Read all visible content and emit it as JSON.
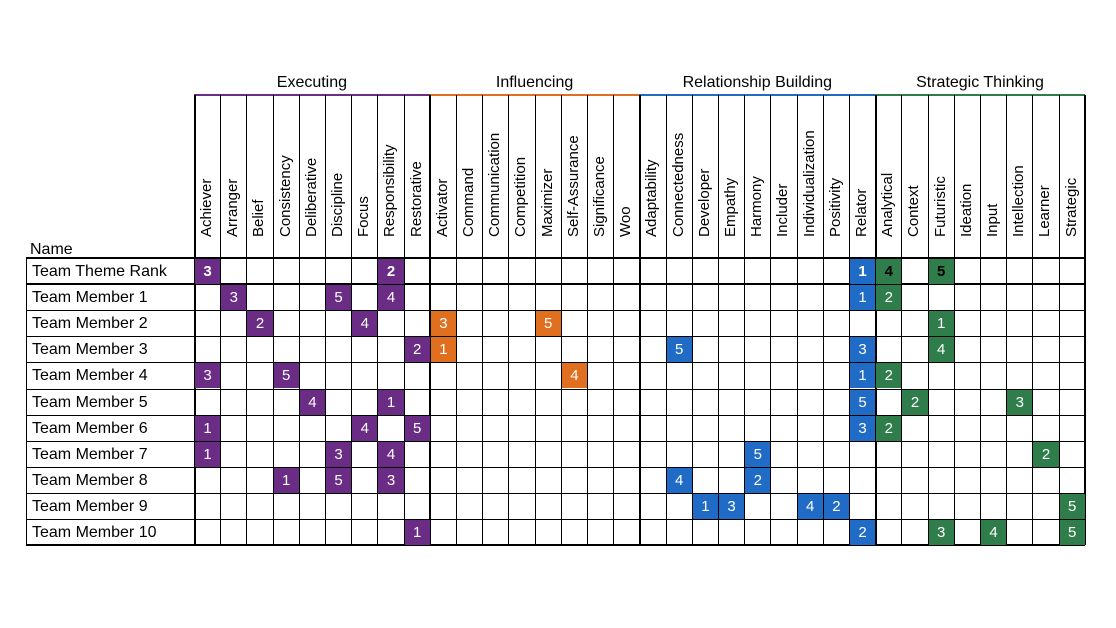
{
  "name_header": "Name",
  "colors": {
    "executing": "#6b2c86",
    "influencing": "#e07020",
    "relationship": "#1f6bc6",
    "strategic": "#2e7d4a"
  },
  "domains": [
    {
      "name": "Executing",
      "color_key": "executing",
      "themes": [
        "Achiever",
        "Arranger",
        "Belief",
        "Consistency",
        "Deliberative",
        "Discipline",
        "Focus",
        "Responsibility",
        "Restorative"
      ]
    },
    {
      "name": "Influencing",
      "color_key": "influencing",
      "themes": [
        "Activator",
        "Command",
        "Communication",
        "Competition",
        "Maximizer",
        "Self-Assurance",
        "Significance",
        "Woo"
      ]
    },
    {
      "name": "Relationship Building",
      "color_key": "relationship",
      "themes": [
        "Adaptability",
        "Connectedness",
        "Developer",
        "Empathy",
        "Harmony",
        "Includer",
        "Individualization",
        "Positivity",
        "Relator"
      ]
    },
    {
      "name": "Strategic Thinking",
      "color_key": "strategic",
      "themes": [
        "Analytical",
        "Context",
        "Futuristic",
        "Ideation",
        "Input",
        "Intellection",
        "Learner",
        "Strategic"
      ]
    }
  ],
  "rows": [
    {
      "name": "Team Theme Rank",
      "bold": true,
      "ranks": {
        "Achiever": 3,
        "Responsibility": 2,
        "Relator": 1,
        "Analytical": 4,
        "Futuristic": 5
      }
    },
    {
      "name": "Team Member 1",
      "ranks": {
        "Arranger": 3,
        "Discipline": 5,
        "Responsibility": 4,
        "Relator": 1,
        "Analytical": 2
      }
    },
    {
      "name": "Team Member 2",
      "ranks": {
        "Belief": 2,
        "Focus": 4,
        "Activator": 3,
        "Maximizer": 5,
        "Futuristic": 1
      }
    },
    {
      "name": "Team Member 3",
      "ranks": {
        "Restorative": 2,
        "Activator": 1,
        "Connectedness": 5,
        "Relator": 3,
        "Futuristic": 4
      }
    },
    {
      "name": "Team Member 4",
      "ranks": {
        "Achiever": 3,
        "Consistency": 5,
        "Self-Assurance": 4,
        "Relator": 1,
        "Analytical": 2
      }
    },
    {
      "name": "Team Member 5",
      "ranks": {
        "Deliberative": 4,
        "Responsibility": 1,
        "Relator": 5,
        "Context": 2,
        "Intellection": 3
      }
    },
    {
      "name": "Team Member 6",
      "ranks": {
        "Achiever": 1,
        "Focus": 4,
        "Restorative": 5,
        "Relator": 3,
        "Analytical": 2
      }
    },
    {
      "name": "Team Member 7",
      "ranks": {
        "Achiever": 1,
        "Discipline": 3,
        "Responsibility": 4,
        "Harmony": 5,
        "Learner": 2
      }
    },
    {
      "name": "Team Member 8",
      "ranks": {
        "Consistency": 1,
        "Discipline": 5,
        "Responsibility": 3,
        "Connectedness": 4,
        "Harmony": 2
      }
    },
    {
      "name": "Team Member 9",
      "ranks": {
        "Developer": 1,
        "Empathy": 3,
        "Individualization": 4,
        "Positivity": 2,
        "Strategic": 5
      }
    },
    {
      "name": "Team Member 10",
      "ranks": {
        "Restorative": 1,
        "Relator": 2,
        "Futuristic": 3,
        "Input": 4,
        "Strategic": 5
      }
    }
  ]
}
